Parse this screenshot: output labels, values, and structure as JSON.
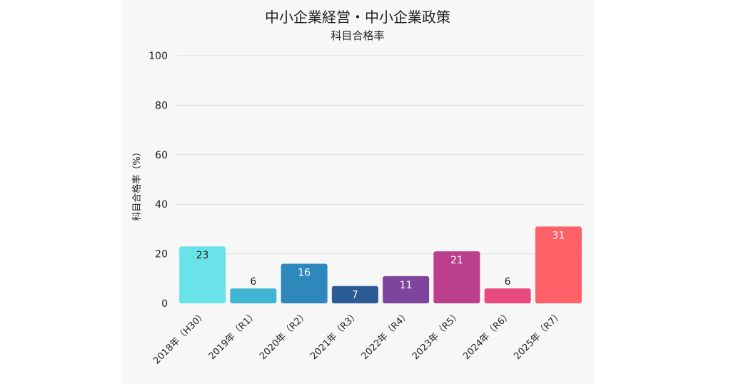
{
  "chart_data": {
    "type": "bar",
    "title": "中小企業経営・中小企業政策",
    "subtitle": "科目合格率",
    "xlabel": "",
    "ylabel": "科目合格率（%）",
    "ylim": [
      0,
      100
    ],
    "yticks": [
      0,
      20,
      40,
      60,
      80,
      100
    ],
    "grid": true,
    "categories": [
      "2018年（H30）",
      "2019年（R1）",
      "2020年（R2）",
      "2021年（R3）",
      "2022年（R4）",
      "2023年（R5）",
      "2024年（R6）",
      "2025年（R7）"
    ],
    "values": [
      23,
      6,
      16,
      7,
      11,
      21,
      6,
      31
    ],
    "colors": [
      "#6ae3e8",
      "#40b5d2",
      "#2e88bc",
      "#2c5a94",
      "#7f449b",
      "#bb3f8c",
      "#e84a7f",
      "#fd6067"
    ]
  }
}
